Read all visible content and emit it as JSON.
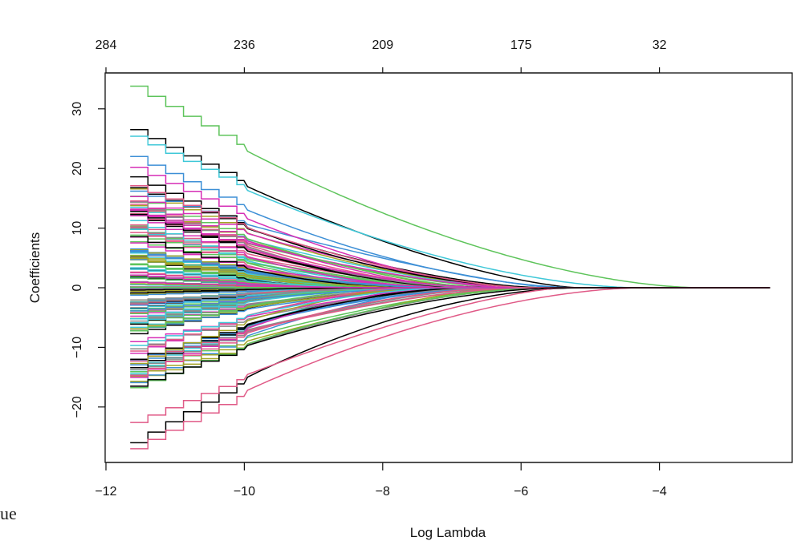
{
  "page_fragment": "ue",
  "chart_data": {
    "type": "line",
    "title": "",
    "xlabel": "Log Lambda",
    "ylabel": "Coefficients",
    "xlim": [
      -12.1,
      -2.2
    ],
    "ylim": [
      -29,
      36.5
    ],
    "x_ticks": [
      -12,
      -10,
      -8,
      -6,
      -4
    ],
    "y_ticks": [
      -20,
      -10,
      0,
      10,
      20,
      30
    ],
    "top_axis": {
      "positions": [
        -12,
        -10,
        -8,
        -6,
        -4
      ],
      "labels": [
        "284",
        "236",
        "209",
        "175",
        "32"
      ]
    },
    "grid": false,
    "legend": "none",
    "path_x_range": [
      -11.65,
      -2.4
    ],
    "series_colors": [
      "#000000",
      "#e05a87",
      "#5ec45b",
      "#3fc8d8",
      "#3d8fd6",
      "#d62fb6",
      "#a3a324",
      "#8a8a8a"
    ],
    "series_count": 150,
    "highlighted_paths": [
      {
        "color": "#5ec45b",
        "start_value": 33.8
      },
      {
        "color": "#000000",
        "start_value": 26.5
      },
      {
        "color": "#3fc8d8",
        "start_value": 25.4
      },
      {
        "color": "#3d8fd6",
        "start_value": 22.0
      },
      {
        "color": "#d62fb6",
        "start_value": 20.2
      },
      {
        "color": "#000000",
        "start_value": 18.6
      },
      {
        "color": "#e05a87",
        "start_value": 17.1
      },
      {
        "color": "#000000",
        "start_value": -26.0
      },
      {
        "color": "#e05a87",
        "start_value": -27.0
      },
      {
        "color": "#e05a87",
        "start_value": -22.6
      },
      {
        "color": "#000000",
        "start_value": -16.5
      }
    ]
  }
}
